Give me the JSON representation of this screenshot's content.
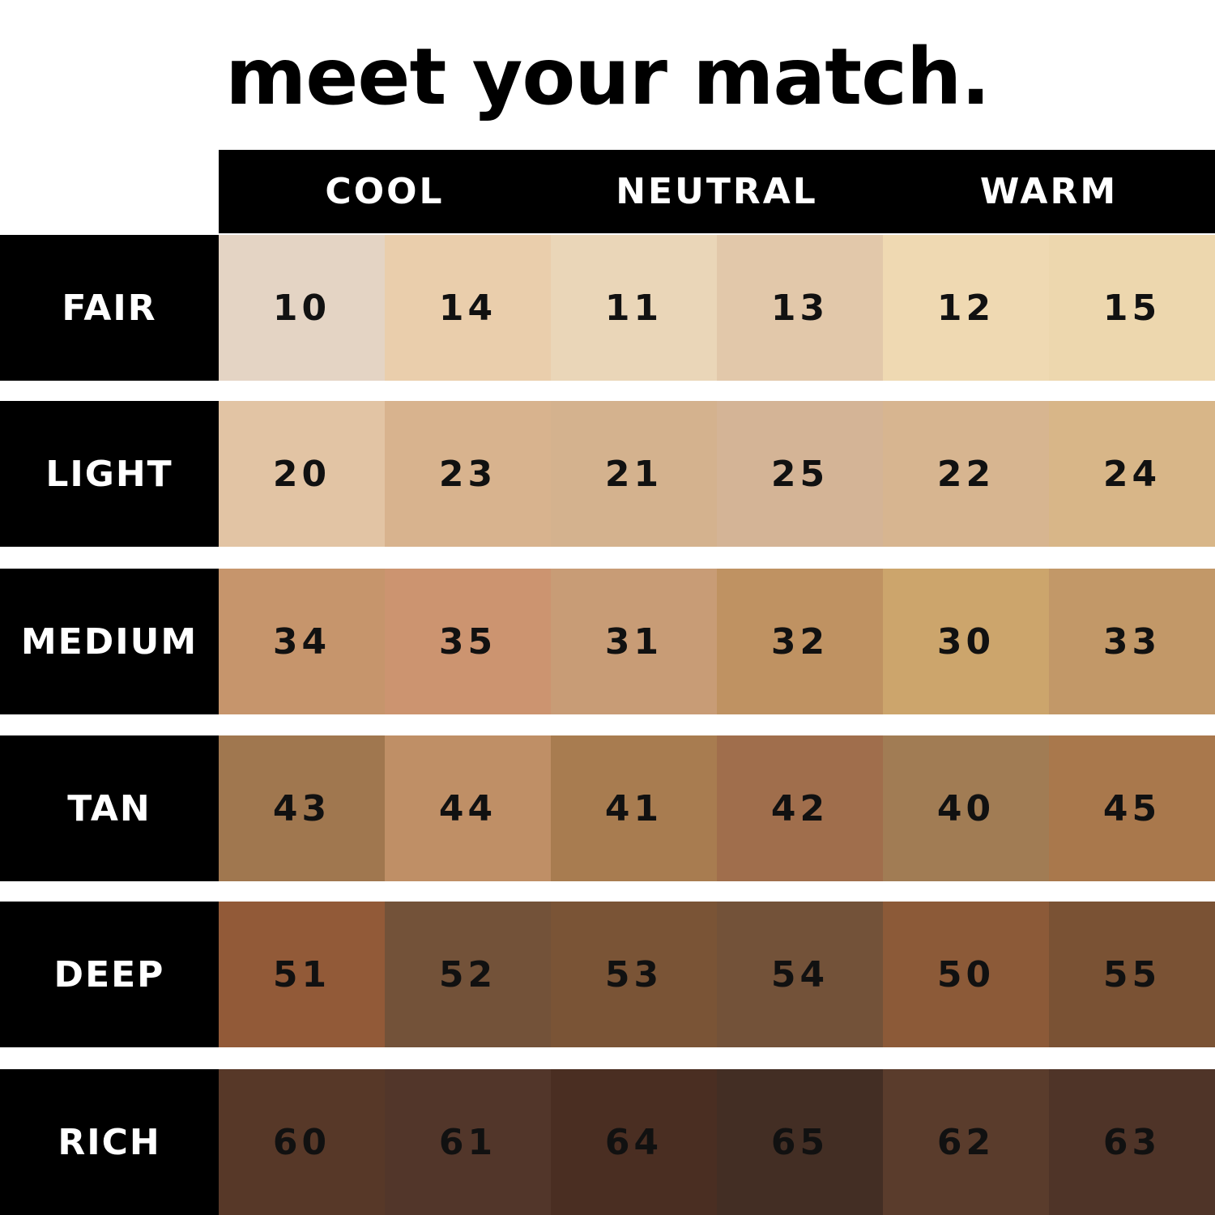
{
  "title": "meet your match.",
  "columns": [
    "COOL",
    "NEUTRAL",
    "WARM"
  ],
  "rows": [
    {
      "label": "FAIR",
      "shades": [
        {
          "num": "10",
          "color": "#e4d4c4"
        },
        {
          "num": "14",
          "color": "#eaceac"
        },
        {
          "num": "11",
          "color": "#ead6b8"
        },
        {
          "num": "13",
          "color": "#e2c8aa"
        },
        {
          "num": "12",
          "color": "#efd9b2"
        },
        {
          "num": "15",
          "color": "#edd7ae"
        }
      ]
    },
    {
      "label": "LIGHT",
      "shades": [
        {
          "num": "20",
          "color": "#e2c4a4"
        },
        {
          "num": "23",
          "color": "#d8b38e"
        },
        {
          "num": "21",
          "color": "#d4b28e"
        },
        {
          "num": "25",
          "color": "#d4b496"
        },
        {
          "num": "22",
          "color": "#d7b590"
        },
        {
          "num": "24",
          "color": "#d8b688"
        }
      ]
    },
    {
      "label": "MEDIUM",
      "shades": [
        {
          "num": "34",
          "color": "#c6956c"
        },
        {
          "num": "35",
          "color": "#cc9470"
        },
        {
          "num": "31",
          "color": "#c89c76"
        },
        {
          "num": "32",
          "color": "#bf9262"
        },
        {
          "num": "30",
          "color": "#cca56c"
        },
        {
          "num": "33",
          "color": "#c29868"
        }
      ]
    },
    {
      "label": "TAN",
      "shades": [
        {
          "num": "43",
          "color": "#a0774f"
        },
        {
          "num": "44",
          "color": "#bf8f66"
        },
        {
          "num": "41",
          "color": "#a87c50"
        },
        {
          "num": "42",
          "color": "#a06e4c"
        },
        {
          "num": "40",
          "color": "#a17c54"
        },
        {
          "num": "45",
          "color": "#a9784c"
        }
      ]
    },
    {
      "label": "DEEP",
      "shades": [
        {
          "num": "51",
          "color": "#925a38"
        },
        {
          "num": "52",
          "color": "#735239"
        },
        {
          "num": "53",
          "color": "#7a5436"
        },
        {
          "num": "54",
          "color": "#735239"
        },
        {
          "num": "50",
          "color": "#8c5a38"
        },
        {
          "num": "55",
          "color": "#7a5234"
        }
      ]
    },
    {
      "label": "RICH",
      "shades": [
        {
          "num": "60",
          "color": "#573828"
        },
        {
          "num": "61",
          "color": "#52362a"
        },
        {
          "num": "64",
          "color": "#4a2e22"
        },
        {
          "num": "65",
          "color": "#432e24"
        },
        {
          "num": "62",
          "color": "#5a3c2c"
        },
        {
          "num": "63",
          "color": "#4f3428"
        }
      ]
    }
  ]
}
